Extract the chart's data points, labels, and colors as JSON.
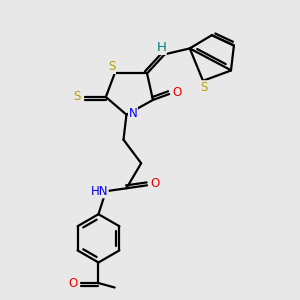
{
  "bg_color": "#e8e8e8",
  "bond_color": "#000000",
  "bond_lw": 1.6,
  "atom_colors": {
    "S": "#b8a000",
    "N": "#0000ee",
    "O": "#ee0000",
    "H": "#008080",
    "C": "#000000"
  },
  "font_size": 8.5,
  "figsize": [
    3.0,
    3.0
  ],
  "dpi": 100
}
